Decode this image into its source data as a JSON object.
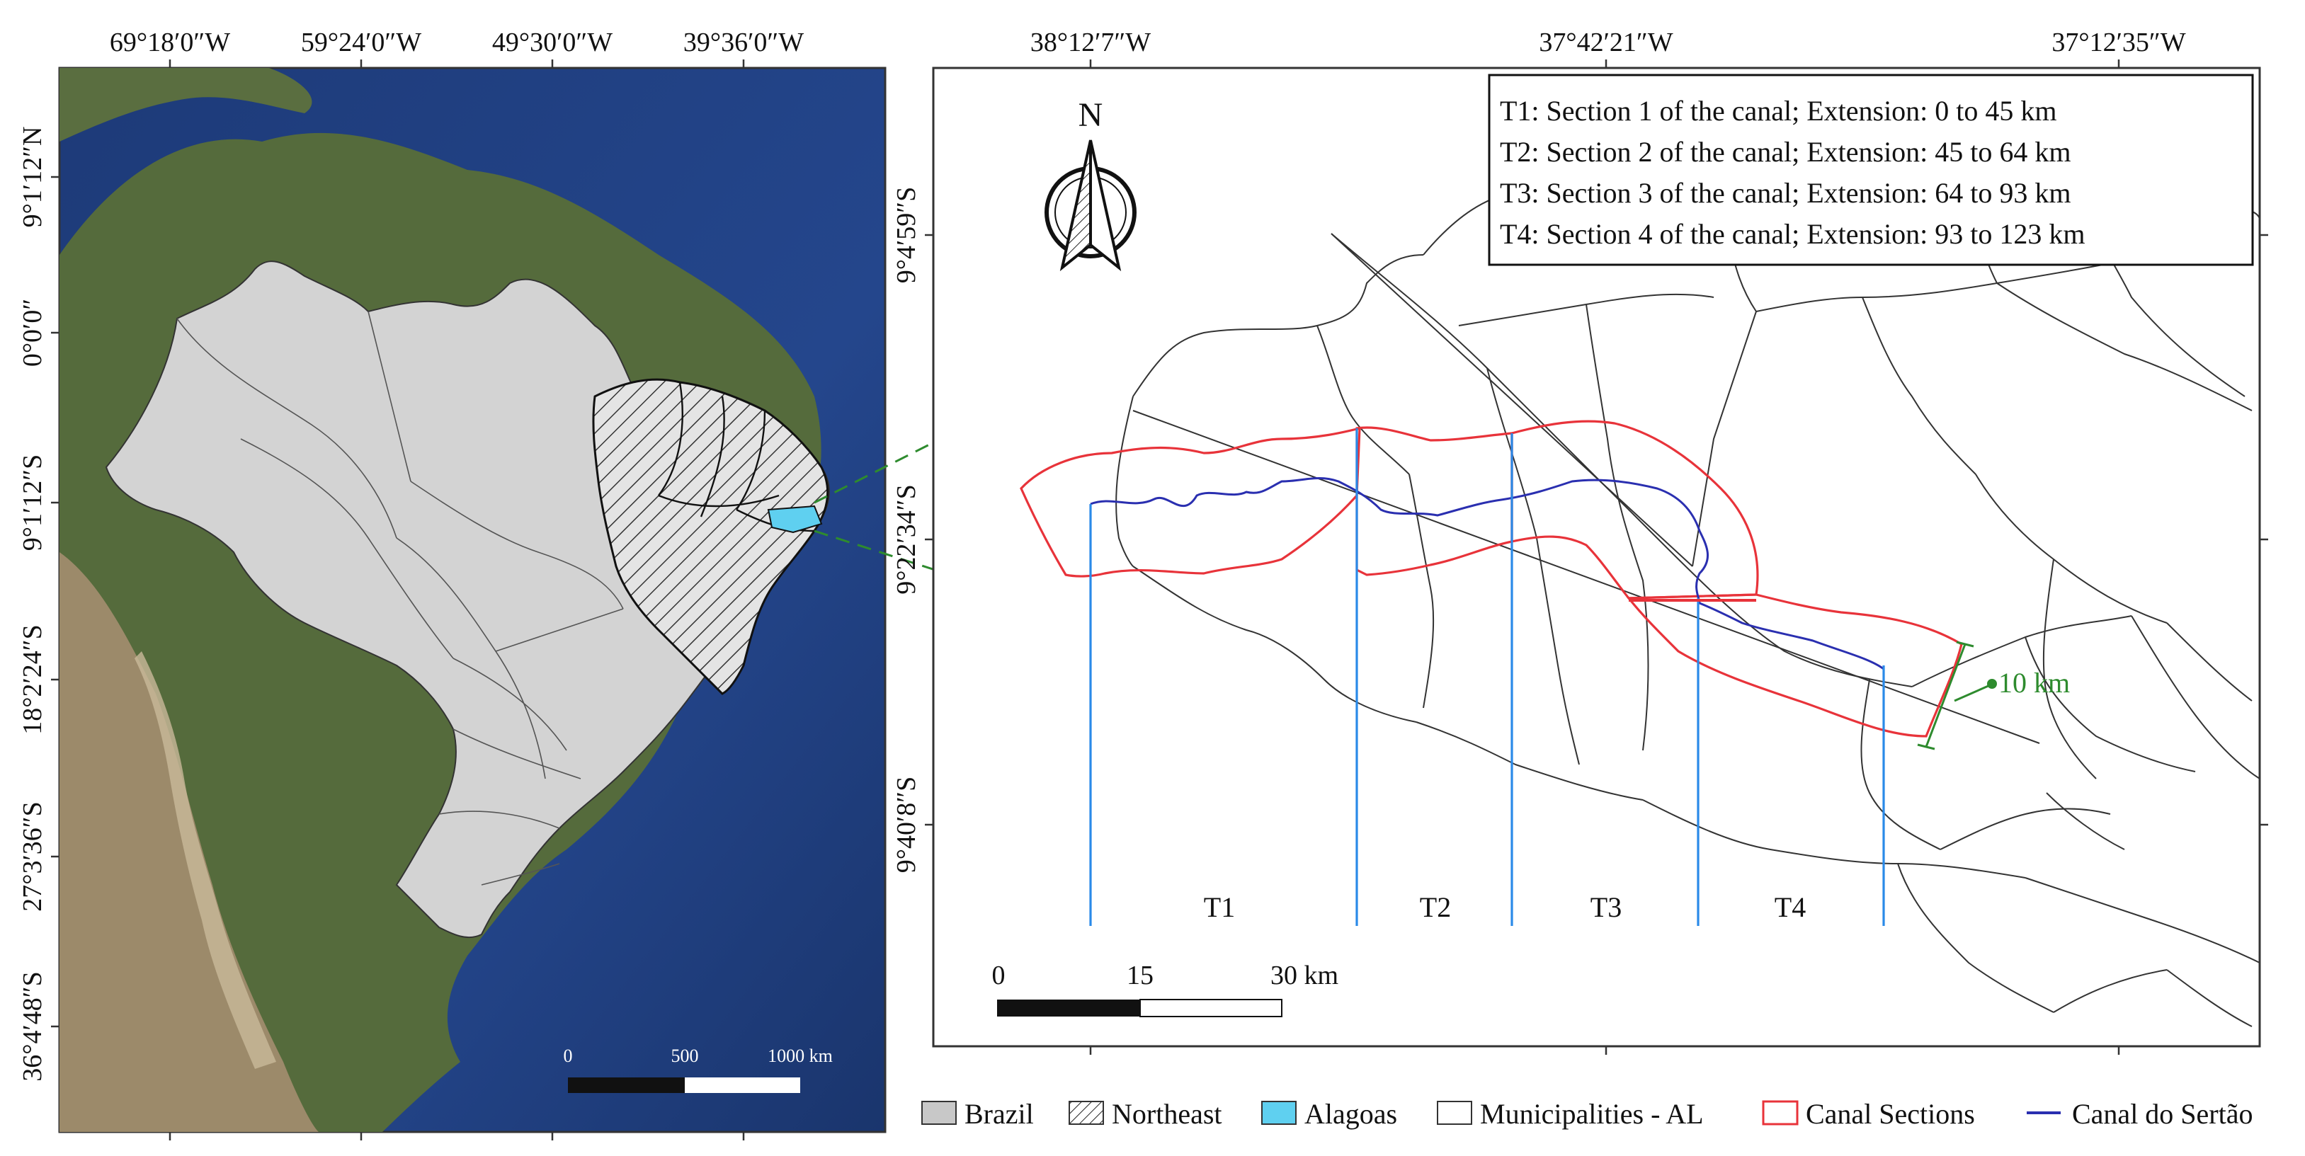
{
  "left_map": {
    "top_coords": [
      "69°18′0″W",
      "59°24′0″W",
      "49°30′0″W",
      "39°36′0″W"
    ],
    "left_coords": [
      "9°1′12″N",
      "0°0′0″",
      "9°1′12″S",
      "18°2′24″S",
      "27°3′36″S",
      "36°4′48″S"
    ],
    "scale": {
      "labels": [
        "0",
        "500",
        "1000 km"
      ]
    }
  },
  "right_map": {
    "top_coords": [
      "38°12′7″W",
      "37°42′21″W",
      "37°12′35″W"
    ],
    "left_coords": [
      "9°4′59″S",
      "9°22′34″S",
      "9°40′8″S"
    ],
    "north_label": "N",
    "info_box": [
      "T1: Section 1 of the canal; Extension: 0 to 45 km",
      "T2: Section 2 of the canal; Extension: 45 to 64 km",
      "T3: Section 3 of the canal; Extension: 64 to 93 km",
      "T4: Section 4 of the canal; Extension: 93 to 123 km"
    ],
    "sections": [
      "T1",
      "T2",
      "T3",
      "T4"
    ],
    "width_label": "10 km",
    "scale": {
      "labels": [
        "0",
        "15",
        "30 km"
      ]
    }
  },
  "legend": [
    {
      "label": "Brazil",
      "swatch": "brazil"
    },
    {
      "label": "Northeast",
      "swatch": "hatch"
    },
    {
      "label": "Alagoas",
      "swatch": "alagoas"
    },
    {
      "label": "Municipalities - AL",
      "swatch": "muni"
    },
    {
      "label": "Canal Sections",
      "swatch": "section"
    },
    {
      "label": "Canal do Sertão",
      "swatch": "canal"
    }
  ],
  "colors": {
    "brazil": "#d3d3d3",
    "alagoas": "#5fd0f0",
    "section_outline": "#e8333a",
    "canal_line": "#2a2fb0",
    "section_divider": "#2a8ae8",
    "callout": "#2e8b2e",
    "width_marker": "#2e8b2e"
  }
}
